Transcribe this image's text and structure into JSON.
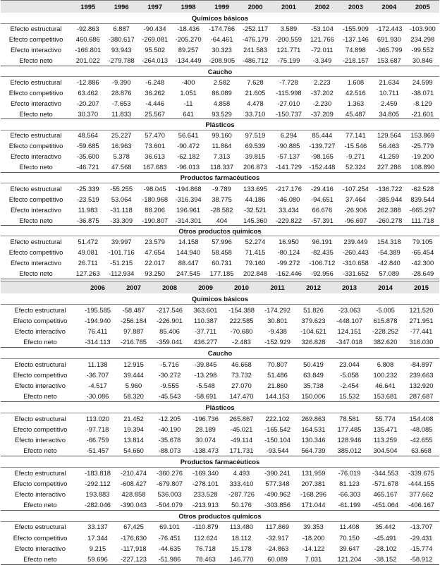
{
  "row_labels": [
    "Efecto estructural",
    "Efecto competitivo",
    "Efecto interactivo",
    "Efecto neto"
  ],
  "tables": [
    {
      "years": [
        "1995",
        "1996",
        "1997",
        "1998",
        "1999",
        "2000",
        "2001",
        "2002",
        "2003",
        "2004",
        "2005"
      ],
      "sections": [
        {
          "title": "Químicos básicos",
          "rows": [
            [
              "-92.863",
              "6.887",
              "-90.434",
              "-18.436",
              "-174.766",
              "-252.117",
              "3.589",
              "-53.104",
              "-155.909",
              "-172.443",
              "-103.900"
            ],
            [
              "460.686",
              "-380.617",
              "-269.081",
              "-205.270",
              "-64.461",
              "-476.179",
              "-200.559",
              "121.766",
              "-137.146",
              "691.930",
              "234.298"
            ],
            [
              "-166.801",
              "93.943",
              "95.502",
              "89.257",
              "30.323",
              "241.583",
              "121.771",
              "-72.011",
              "74.898",
              "-365.799",
              "-99.552"
            ],
            [
              "201.022",
              "-279.788",
              "-264.013",
              "-134.449",
              "-208.905",
              "-486.712",
              "-75.199",
              "-3.349",
              "-218.157",
              "153.687",
              "30.846"
            ]
          ]
        },
        {
          "title": "Caucho",
          "rows": [
            [
              "-12.886",
              "-9.390",
              "-6.248",
              "-400",
              "2.582",
              "7.628",
              "-7.728",
              "2.223",
              "1.608",
              "21.634",
              "24.599"
            ],
            [
              "63.462",
              "28.876",
              "36.262",
              "1.051",
              "86.089",
              "21.605",
              "-115.998",
              "-37.202",
              "42.516",
              "10.711",
              "-38.071"
            ],
            [
              "-20.207",
              "-7.653",
              "-4.446",
              "-11",
              "4.858",
              "4.478",
              "-27.010",
              "-2.230",
              "1.363",
              "2.459",
              "-8.129"
            ],
            [
              "30.370",
              "11.833",
              "25.567",
              "641",
              "93.529",
              "33.710",
              "-150.737",
              "-37.209",
              "45.487",
              "34.805",
              "-21.601"
            ]
          ]
        },
        {
          "title": "Plásticos",
          "rows": [
            [
              "48.564",
              "25.227",
              "57.470",
              "56.641",
              "99.160",
              "97.519",
              "6.294",
              "85.444",
              "77.141",
              "129.564",
              "153.869"
            ],
            [
              "-59.685",
              "16.963",
              "73.601",
              "-90.472",
              "11.864",
              "69.539",
              "-90.885",
              "-139.727",
              "-15.546",
              "56.463",
              "-25.779"
            ],
            [
              "-35.600",
              "5.378",
              "36.613",
              "-62.182",
              "7.313",
              "39.815",
              "-57.137",
              "-98.165",
              "-9.271",
              "41.259",
              "-19.200"
            ],
            [
              "-46.721",
              "47.568",
              "167.683",
              "-96.013",
              "118.337",
              "206.873",
              "-141.729",
              "-152.448",
              "52.324",
              "227.286",
              "108.890"
            ]
          ]
        },
        {
          "title": "Productos farmacéuticos",
          "rows": [
            [
              "-25.339",
              "-55.255",
              "-98.045",
              "-194.868",
              "-9.789",
              "133.695",
              "-217.176",
              "-29.416",
              "-107.254",
              "-136.722",
              "-62.528"
            ],
            [
              "-23.519",
              "53.064",
              "-180.968",
              "-316.394",
              "38.775",
              "44.186",
              "-46.080",
              "-94.651",
              "37.464",
              "-385.944",
              "839.544"
            ],
            [
              "11.983",
              "-31.118",
              "88.206",
              "196.961",
              "-28.582",
              "-32.521",
              "33.434",
              "66.676",
              "-26.906",
              "262.388",
              "-665.297"
            ],
            [
              "-36.875",
              "-33.309",
              "-190.807",
              "-314.301",
              "404",
              "145.360",
              "-229.822",
              "-57.391",
              "-96.697",
              "-260.278",
              "111.718"
            ]
          ]
        },
        {
          "title": "Otros productos químicos",
          "rows": [
            [
              "51.472",
              "39.997",
              "23.579",
              "14.158",
              "57.996",
              "52.274",
              "16.950",
              "96.191",
              "239.449",
              "154.318",
              "79.105"
            ],
            [
              "49.081",
              "-101.716",
              "47.654",
              "144.940",
              "58.458",
              "71.415",
              "-80.124",
              "-82.435",
              "-260.443",
              "-54.389",
              "-65.454"
            ],
            [
              "26.711",
              "-51.215",
              "22.017",
              "88.447",
              "60.731",
              "79.160",
              "-99.272",
              "-106.712",
              "-310.658",
              "-42.840",
              "-42.300"
            ],
            [
              "127.263",
              "-112.934",
              "93.250",
              "247.545",
              "177.185",
              "202.848",
              "-162.446",
              "-92.956",
              "-331.652",
              "57.089",
              "-28.649"
            ]
          ]
        }
      ]
    },
    {
      "years": [
        "2006",
        "2007",
        "2008",
        "2009",
        "2010",
        "2011",
        "2012",
        "2013",
        "2014",
        "2015"
      ],
      "sections": [
        {
          "title": "Químicos básicos",
          "rows": [
            [
              "-195.585",
              "-58.487",
              "-217.546",
              "363.601",
              "-154.388",
              "-174.292",
              "51.826",
              "-23.063",
              "-5.005",
              "121.520"
            ],
            [
              "-194.940",
              "-256.184",
              "-226.901",
              "110.387",
              "222.585",
              "30.801",
              "379.623",
              "-448.107",
              "615.878",
              "271.951"
            ],
            [
              "76.411",
              "97.887",
              "85.406",
              "-37.711",
              "-70.680",
              "-9.438",
              "-104.621",
              "124.151",
              "-228.252",
              "-77.441"
            ],
            [
              "-314.113",
              "-216.785",
              "-359.041",
              "436.277",
              "-2.483",
              "-152.929",
              "326.828",
              "-347.018",
              "382.620",
              "316.030"
            ]
          ]
        },
        {
          "title": "Caucho",
          "rows": [
            [
              "11.138",
              "12.915",
              "-5.716",
              "-39.845",
              "46.668",
              "70.807",
              "50.419",
              "23.044",
              "6.808",
              "-84.897"
            ],
            [
              "-36.707",
              "39.444",
              "-30.272",
              "-13.298",
              "73.732",
              "51.486",
              "63.849",
              "-5.058",
              "100.232",
              "239.663"
            ],
            [
              "-4.517",
              "5.960",
              "-9.555",
              "-5.548",
              "27.070",
              "21.860",
              "35.738",
              "-2.454",
              "46.641",
              "132.920"
            ],
            [
              "-30.086",
              "58.320",
              "-45.543",
              "-58.691",
              "147.470",
              "144.153",
              "150.006",
              "15.532",
              "153.681",
              "287.687"
            ]
          ]
        },
        {
          "title": "Plásticos",
          "rows": [
            [
              "113.020",
              "21.452",
              "-12.205",
              "-196.736",
              "265.867",
              "222.102",
              "269.863",
              "78.581",
              "55.774",
              "154.408"
            ],
            [
              "-97.718",
              "19.394",
              "-40.190",
              "28.189",
              "-45.021",
              "-165.542",
              "164.531",
              "177.485",
              "135.471",
              "-48.085"
            ],
            [
              "-66.759",
              "13.814",
              "-35.678",
              "30.074",
              "-49.114",
              "-150.104",
              "130.346",
              "128.946",
              "113.259",
              "-42.655"
            ],
            [
              "-51.457",
              "54.660",
              "-88.073",
              "-138.473",
              "171.731",
              "-93.544",
              "564.739",
              "385.012",
              "304.504",
              "63.668"
            ]
          ]
        },
        {
          "title": "Productos farmacéuticos",
          "rows": [
            [
              "-183.818",
              "-210.474",
              "-360.276",
              "-169.340",
              "4.493",
              "-390.241",
              "131.959",
              "-76.019",
              "-344.553",
              "-339.675"
            ],
            [
              "-292.112",
              "-608.427",
              "-679.807",
              "-278.101",
              "333.410",
              "577.348",
              "207.381",
              "81.123",
              "-571.678",
              "-444.155"
            ],
            [
              "193.883",
              "428.858",
              "536.003",
              "233.528",
              "-287.726",
              "-490.962",
              "-168.296",
              "-66.303",
              "465.167",
              "377.662"
            ],
            [
              "-282.046",
              "-390.043",
              "-504.079",
              "-213.913",
              "50.176",
              "-303.856",
              "171.044",
              "-61.199",
              "-451.064",
              "-406.167"
            ]
          ]
        },
        {
          "title": "Otros productos químicos",
          "rows": [
            [
              "33.137",
              "67,425",
              "69.101",
              "-110.879",
              "113.480",
              "117.869",
              "39.353",
              "11.408",
              "35.442",
              "-13.707"
            ],
            [
              "17.344",
              "-176,630",
              "-76.451",
              "112.624",
              "18.112",
              "-32.917",
              "-18.200",
              "70.150",
              "-45.491",
              "-29.431"
            ],
            [
              "9.215",
              "-117,918",
              "-44.635",
              "76.718",
              "15.178",
              "-24.863",
              "-14.122",
              "39.647",
              "-28.102",
              "-15.774"
            ],
            [
              "59.696",
              "-227,123",
              "-51.986",
              "78.463",
              "146.770",
              "60.089",
              "7.031",
              "121.204",
              "-38.152",
              "-58.912"
            ]
          ]
        }
      ]
    }
  ]
}
